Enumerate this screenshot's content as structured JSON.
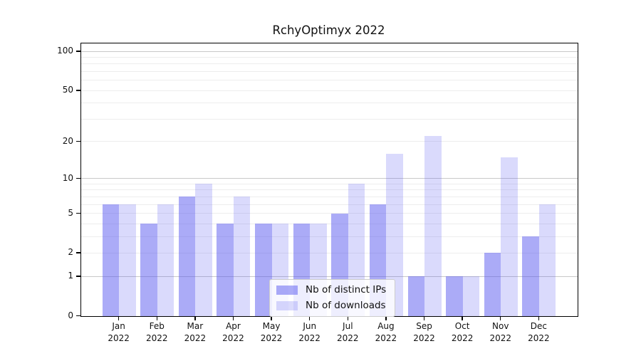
{
  "title": "RchyOptimyx 2022",
  "colors": {
    "bar_ips": "#5858f080",
    "bar_downloads": "#5858f038",
    "major_grid": "#c8c8c8",
    "minor_grid": "#ededed",
    "axis": "#000000",
    "legend_border": "#cccccc",
    "legend_bg": "rgba(255,255,255,0.8)",
    "text": "#111111"
  },
  "chart_data": {
    "type": "bar",
    "title": "RchyOptimyx 2022",
    "x_categories": [
      "Jan",
      "Feb",
      "Mar",
      "Apr",
      "May",
      "Jun",
      "Jul",
      "Aug",
      "Sep",
      "Oct",
      "Nov",
      "Dec"
    ],
    "x_year_label": "2022",
    "series": [
      {
        "name": "Nb of distinct IPs",
        "color": "#5858f080",
        "values": [
          6,
          4,
          7,
          4,
          4,
          4,
          5,
          6,
          1,
          1,
          2,
          3
        ]
      },
      {
        "name": "Nb of downloads",
        "color": "#5858f038",
        "values": [
          6,
          6,
          9,
          7,
          4,
          4,
          9,
          16,
          22,
          1,
          15,
          6
        ]
      }
    ],
    "xlabel": "",
    "ylabel": "",
    "yscale": "log1p",
    "ylim": [
      0,
      114
    ],
    "y_ticks": [
      0,
      1,
      2,
      5,
      10,
      20,
      50,
      100
    ],
    "grid": true,
    "grid_major_values": [
      1,
      10,
      100
    ],
    "grid_minor_values": [
      2,
      3,
      4,
      5,
      6,
      7,
      8,
      9,
      20,
      30,
      40,
      50,
      60,
      70,
      80,
      90
    ],
    "legend_position": "lower-center"
  }
}
